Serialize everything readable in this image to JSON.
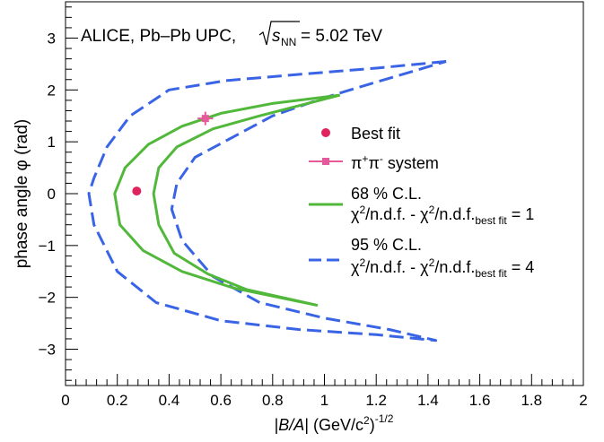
{
  "chart_data": {
    "type": "scatter",
    "annotation": "ALICE, Pb–Pb UPC,",
    "energy_sqrt": "s",
    "energy_sub": "NN",
    "energy_value": " = 5.02 TeV",
    "xlabel_pre": "|",
    "xlabel_italic": "B/A",
    "xlabel_post": "| (GeV/c",
    "xlabel_sup2": "2",
    "xlabel_close": ")",
    "xlabel_exp": "-1/2",
    "ylabel": "phase angle φ (rad)",
    "xlim": [
      0,
      2
    ],
    "ylim": [
      -3.7,
      3.7
    ],
    "x_ticks": [
      "0",
      "0.2",
      "0.4",
      "0.6",
      "0.8",
      "1",
      "1.2",
      "1.4",
      "1.6",
      "1.8",
      "2"
    ],
    "y_ticks": [
      "−3",
      "−2",
      "−1",
      "0",
      "1",
      "2",
      "3"
    ],
    "colors": {
      "best_fit": "#e0245e",
      "system": "#e65a9c",
      "cl68": "#52b83b",
      "cl95": "#3a64e6"
    },
    "legend": {
      "best_fit": "Best fit",
      "system_a": "π",
      "system_a_sup": "+",
      "system_b": "π",
      "system_b_sup": "-",
      "system_rest": " system",
      "cl68_title": "68 % C.L.",
      "cl95_title": "95 % C.L.",
      "chi": "χ",
      "sq": "2",
      "ndf": "/n.d.f. - χ",
      "ndf2": "/n.d.f.",
      "bestsub": "best fit",
      "cl68_eq": " = 1",
      "cl95_eq": " = 4"
    },
    "series": [
      {
        "name": "Best fit",
        "points": [
          [
            0.275,
            0.05
          ]
        ]
      },
      {
        "name": "π⁺π⁻ system",
        "points": [
          [
            0.54,
            1.45
          ]
        ],
        "xerr": 0.03,
        "yerr": 0.13
      },
      {
        "name": "68 % C.L.",
        "contour": [
          [
            1.06,
            1.9
          ],
          [
            0.8,
            1.74
          ],
          [
            0.6,
            1.55
          ],
          [
            0.45,
            1.3
          ],
          [
            0.32,
            0.95
          ],
          [
            0.23,
            0.5
          ],
          [
            0.19,
            0.0
          ],
          [
            0.21,
            -0.6
          ],
          [
            0.3,
            -1.1
          ],
          [
            0.45,
            -1.5
          ],
          [
            0.65,
            -1.82
          ],
          [
            0.97,
            -2.15
          ],
          [
            0.7,
            -1.85
          ],
          [
            0.55,
            -1.55
          ],
          [
            0.42,
            -1.15
          ],
          [
            0.36,
            -0.6
          ],
          [
            0.34,
            0.0
          ],
          [
            0.36,
            0.5
          ],
          [
            0.43,
            0.9
          ],
          [
            0.57,
            1.25
          ],
          [
            0.75,
            1.5
          ],
          [
            1.06,
            1.9
          ]
        ]
      },
      {
        "name": "95 % C.L.",
        "contour": [
          [
            1.47,
            2.55
          ],
          [
            1.2,
            2.42
          ],
          [
            0.9,
            2.3
          ],
          [
            0.62,
            2.18
          ],
          [
            0.4,
            2.0
          ],
          [
            0.25,
            1.5
          ],
          [
            0.16,
            0.9
          ],
          [
            0.11,
            0.3
          ],
          [
            0.09,
            0.0
          ],
          [
            0.11,
            -0.6
          ],
          [
            0.2,
            -1.5
          ],
          [
            0.35,
            -2.1
          ],
          [
            0.6,
            -2.45
          ],
          [
            0.9,
            -2.62
          ],
          [
            1.2,
            -2.72
          ],
          [
            1.43,
            -2.83
          ],
          [
            1.25,
            -2.62
          ],
          [
            1.0,
            -2.4
          ],
          [
            0.75,
            -2.1
          ],
          [
            0.57,
            -1.6
          ],
          [
            0.45,
            -0.9
          ],
          [
            0.41,
            -0.3
          ],
          [
            0.43,
            0.2
          ],
          [
            0.5,
            0.7
          ],
          [
            0.65,
            1.1
          ],
          [
            0.8,
            1.5
          ],
          [
            1.0,
            1.85
          ],
          [
            1.2,
            2.15
          ],
          [
            1.47,
            2.55
          ]
        ]
      }
    ]
  }
}
